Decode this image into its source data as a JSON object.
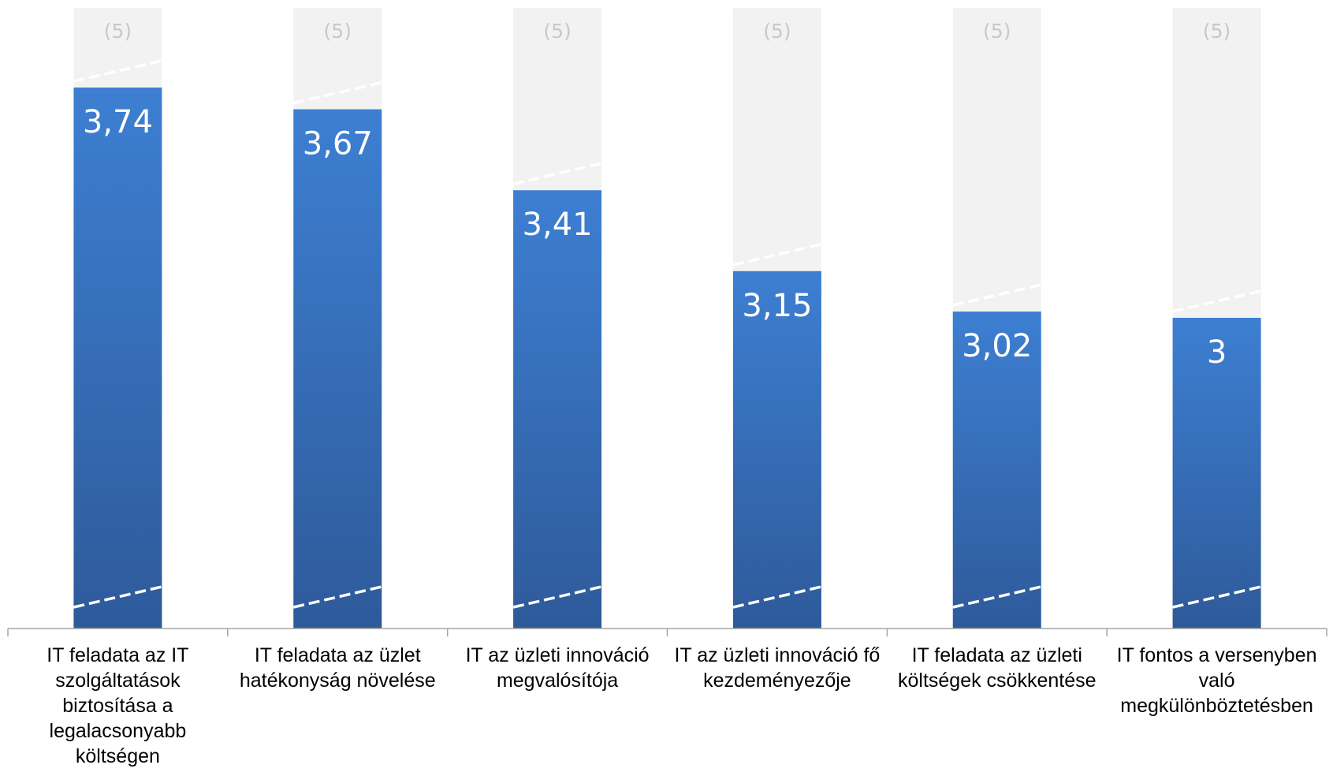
{
  "chart_data": {
    "type": "bar",
    "categories": [
      "IT feladata az IT szolgáltatások biztosítása a legalacsonyabb költségen",
      "IT feladata az üzlet hatékonyság növelése",
      "IT az üzleti innováció megvalósítója",
      "IT az üzleti innováció fő kezdeményezője",
      "IT feladata az üzleti költségek csökkentése",
      "IT fontos a versenyben való megkülönböztetésben"
    ],
    "values": [
      3.74,
      3.67,
      3.41,
      3.15,
      3.02,
      3
    ],
    "value_labels": [
      "3,74",
      "3,67",
      "3,41",
      "3,15",
      "3,02",
      "3"
    ],
    "max": 5,
    "max_label": "(5)",
    "axis_break": true,
    "colors": {
      "bar_top": "#3d7fd2",
      "bar_bottom": "#2e5a9a",
      "background_bar": "#f2f2f2",
      "max_label": "#c8c8c8",
      "axis": "#a6a6a6"
    }
  }
}
